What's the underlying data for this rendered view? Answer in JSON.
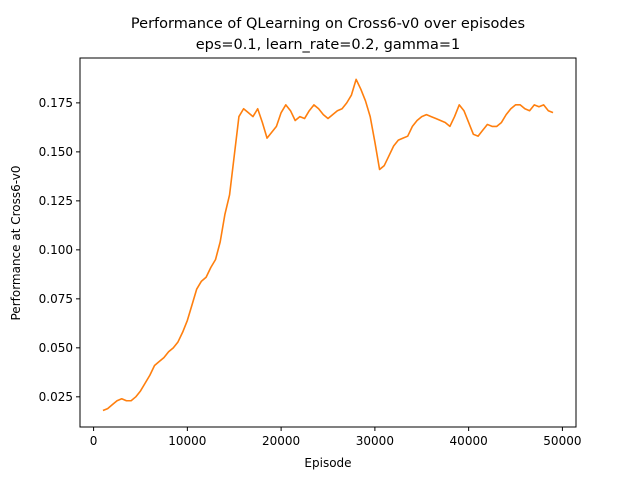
{
  "chart_data": {
    "type": "line",
    "title": "Performance of QLearning on Cross6-v0 over episodes",
    "subtitle": "eps=0.1, learn_rate=0.2, gamma=1",
    "xlabel": "Episode",
    "ylabel": "Performance at Cross6-v0",
    "xlim": [
      -1450,
      51450
    ],
    "ylim": [
      0.0096,
      0.1979
    ],
    "x_ticks": [
      0,
      10000,
      20000,
      30000,
      40000,
      50000
    ],
    "x_tick_labels": [
      "0",
      "10000",
      "20000",
      "30000",
      "40000",
      "50000"
    ],
    "y_ticks": [
      0.025,
      0.05,
      0.075,
      0.1,
      0.125,
      0.15,
      0.175
    ],
    "y_tick_labels": [
      "0.025",
      "0.050",
      "0.075",
      "0.100",
      "0.125",
      "0.150",
      "0.175"
    ],
    "grid": false,
    "legend": "none",
    "series": [
      {
        "color": "#ff7f0e",
        "x": [
          1000,
          1500,
          2000,
          2500,
          3000,
          3500,
          4000,
          4500,
          5000,
          5500,
          6000,
          6500,
          7000,
          7500,
          8000,
          8500,
          9000,
          9500,
          10000,
          10500,
          11000,
          11500,
          12000,
          12500,
          13000,
          13500,
          14000,
          14500,
          15000,
          15500,
          16000,
          16500,
          17000,
          17500,
          18000,
          18500,
          19000,
          19500,
          20000,
          20500,
          21000,
          21500,
          22000,
          22500,
          23000,
          23500,
          24000,
          24500,
          25000,
          25500,
          26000,
          26500,
          27000,
          27500,
          28000,
          28500,
          29000,
          29500,
          30000,
          30500,
          31000,
          31500,
          32000,
          32500,
          33000,
          33500,
          34000,
          34500,
          35000,
          35500,
          36000,
          36500,
          37000,
          37500,
          38000,
          38500,
          39000,
          39500,
          40000,
          40500,
          41000,
          41500,
          42000,
          42500,
          43000,
          43500,
          44000,
          44500,
          45000,
          45500,
          46000,
          46500,
          47000,
          47500,
          48000,
          48500,
          49000
        ],
        "y": [
          0.018,
          0.019,
          0.021,
          0.023,
          0.024,
          0.023,
          0.023,
          0.025,
          0.028,
          0.032,
          0.036,
          0.041,
          0.043,
          0.045,
          0.048,
          0.05,
          0.053,
          0.058,
          0.064,
          0.072,
          0.08,
          0.084,
          0.086,
          0.091,
          0.095,
          0.104,
          0.118,
          0.128,
          0.148,
          0.168,
          0.172,
          0.17,
          0.168,
          0.172,
          0.165,
          0.157,
          0.16,
          0.163,
          0.17,
          0.174,
          0.171,
          0.166,
          0.168,
          0.167,
          0.171,
          0.174,
          0.172,
          0.169,
          0.167,
          0.169,
          0.171,
          0.172,
          0.175,
          0.179,
          0.187,
          0.182,
          0.176,
          0.168,
          0.155,
          0.141,
          0.143,
          0.148,
          0.153,
          0.156,
          0.157,
          0.158,
          0.163,
          0.166,
          0.168,
          0.169,
          0.168,
          0.167,
          0.166,
          0.165,
          0.163,
          0.168,
          0.174,
          0.171,
          0.165,
          0.159,
          0.158,
          0.161,
          0.164,
          0.163,
          0.163,
          0.165,
          0.169,
          0.172,
          0.174,
          0.174,
          0.172,
          0.171,
          0.174,
          0.173,
          0.174,
          0.171,
          0.17
        ]
      }
    ]
  }
}
